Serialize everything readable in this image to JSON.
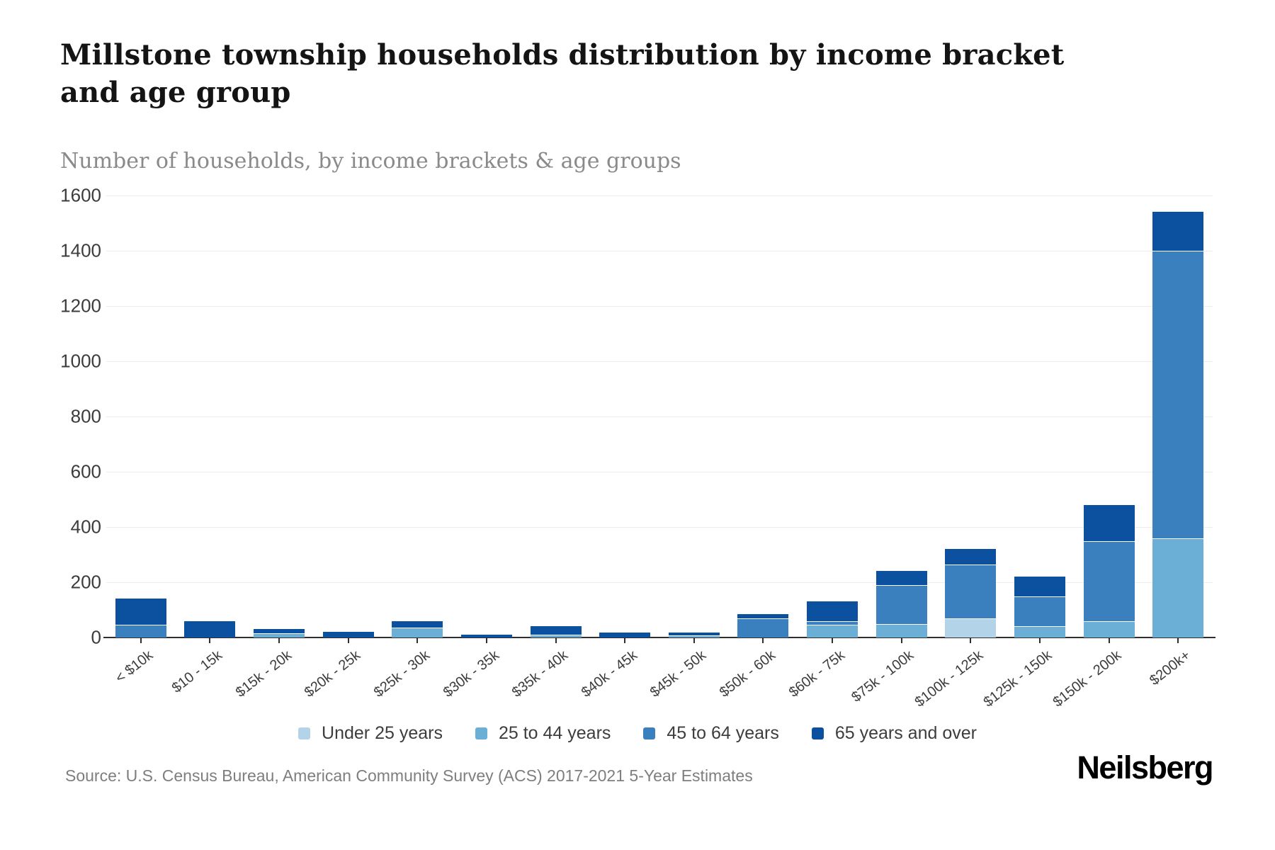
{
  "header": {
    "title": "Millstone township households distribution by income bracket and age group",
    "subtitle": "Number of households, by income brackets & age groups"
  },
  "footer": {
    "source": "Source: U.S. Census Bureau, American Community Survey (ACS) 2017-2021 5-Year Estimates",
    "brand": "Neilsberg"
  },
  "colors": {
    "under25": "#b3d3e8",
    "age25to44": "#6baed6",
    "age45to64": "#3a80bf",
    "age65plus": "#0b519f",
    "gridline": "#ededed",
    "axis": "#2f2f2f",
    "tick_label": "#3c3c3c"
  },
  "chart_data": {
    "type": "bar",
    "stacked": true,
    "title": "Millstone township households distribution by income bracket and age group",
    "subtitle": "Number of households, by income brackets & age groups",
    "xlabel": "",
    "ylabel": "Number of households",
    "ylim": [
      0,
      1600
    ],
    "ytick_step": 200,
    "grid": true,
    "legend_position": "bottom",
    "categories": [
      "< $10k",
      "$10 - 15k",
      "$15k - 20k",
      "$20k - 25k",
      "$25k - 30k",
      "$30k - 35k",
      "$35k - 40k",
      "$40k - 45k",
      "$45k - 50k",
      "$50k - 60k",
      "$60k - 75k",
      "$75k - 100k",
      "$100k - 125k",
      "$125k - 150k",
      "$150k - 200k",
      "$200k+"
    ],
    "series": [
      {
        "name": "Under 25 years",
        "color": "#b3d3e8",
        "values": [
          0,
          0,
          0,
          0,
          0,
          0,
          0,
          0,
          0,
          0,
          0,
          0,
          70,
          0,
          0,
          0
        ]
      },
      {
        "name": "25 to 44 years",
        "color": "#6baed6",
        "values": [
          0,
          0,
          15,
          0,
          35,
          0,
          10,
          0,
          8,
          0,
          45,
          50,
          0,
          40,
          60,
          360
        ]
      },
      {
        "name": "45 to 64 years",
        "color": "#3a80bf",
        "values": [
          45,
          0,
          0,
          0,
          0,
          0,
          0,
          0,
          0,
          70,
          15,
          140,
          195,
          110,
          290,
          1040
        ]
      },
      {
        "name": "65 years and over",
        "color": "#0b519f",
        "values": [
          95,
          60,
          15,
          20,
          25,
          10,
          30,
          18,
          10,
          15,
          70,
          50,
          55,
          70,
          130,
          140
        ]
      }
    ]
  }
}
